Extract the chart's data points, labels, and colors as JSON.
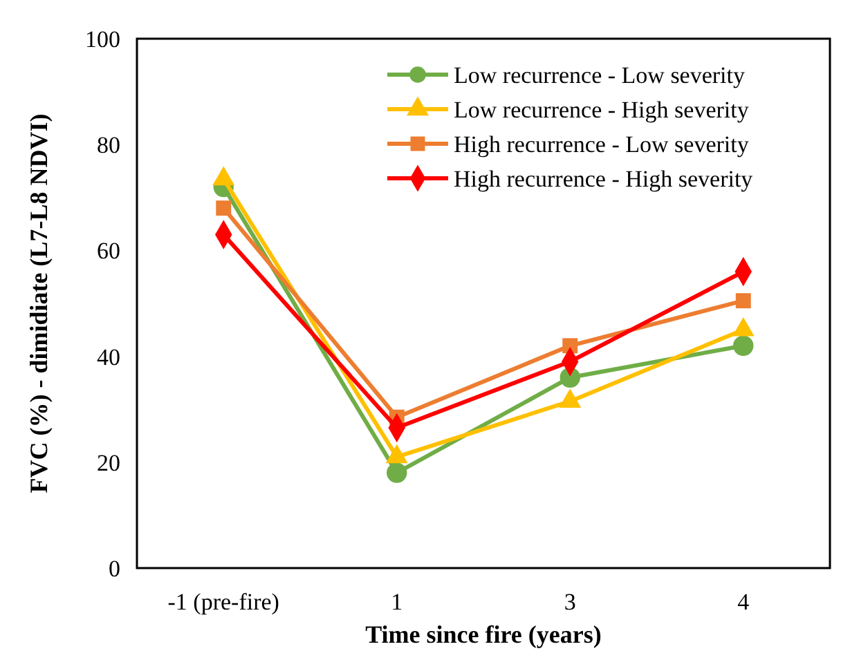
{
  "chart_data": {
    "type": "line",
    "xlabel": "Time since fire (years)",
    "ylabel": "FVC (%) - dimidiate (L7-L8 NDVI)",
    "categories": [
      "-1 (pre-fire)",
      "1",
      "3",
      "4"
    ],
    "ylim": [
      0,
      100
    ],
    "yticks": [
      0,
      20,
      40,
      60,
      80,
      100
    ],
    "grid": false,
    "legend": "top right",
    "line_style": "solid",
    "series": [
      {
        "name": "Low recurrence - Low severity",
        "color": "#70ad47",
        "marker": "circle",
        "values": [
          72,
          18,
          36,
          42
        ]
      },
      {
        "name": "Low recurrence - High severity",
        "color": "#ffc000",
        "marker": "triangle",
        "values": [
          73.5,
          21,
          31.5,
          45
        ]
      },
      {
        "name": "High recurrence - Low severity",
        "color": "#ed7d31",
        "marker": "square",
        "values": [
          68,
          28.5,
          42,
          50.5
        ]
      },
      {
        "name": "High recurrence - High severity",
        "color": "#ff0000",
        "marker": "diamond",
        "values": [
          63,
          26.5,
          39,
          56
        ]
      }
    ]
  }
}
